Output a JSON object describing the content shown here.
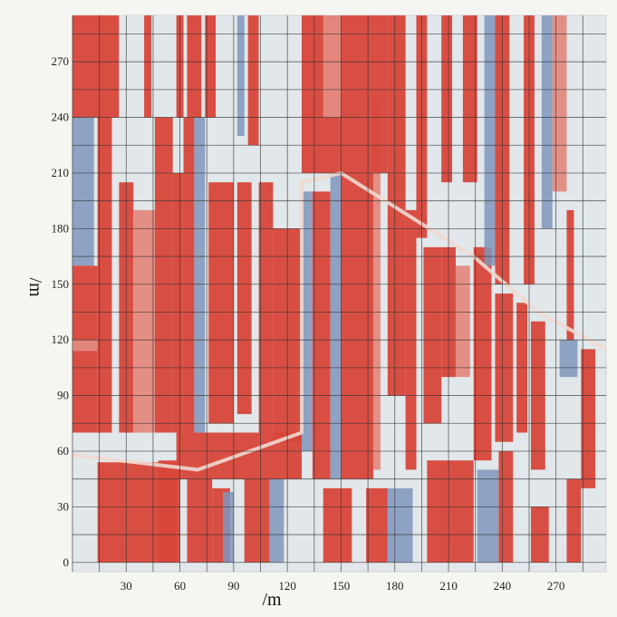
{
  "chart_data": {
    "type": "heatmap",
    "title": "",
    "xlabel": "/m",
    "ylabel": "/m",
    "x_ticks": [
      30,
      60,
      90,
      120,
      150,
      180,
      210,
      240,
      270
    ],
    "y_ticks": [
      0,
      30,
      60,
      90,
      120,
      150,
      180,
      210,
      240,
      270
    ],
    "xlim": [
      0,
      298
    ],
    "ylim": [
      -5,
      295
    ],
    "grid": true,
    "colors": {
      "red": "#d8463a",
      "pink": "#e48a7f",
      "white": "#e1e7ea",
      "blue": "#7f95bc",
      "frame": "#cfd4d6",
      "grid": "#333333"
    },
    "patches": [
      {
        "x": [
          0,
          26
        ],
        "y": [
          240,
          295
        ],
        "c": "red"
      },
      {
        "x": [
          0,
          12
        ],
        "y": [
          160,
          240
        ],
        "c": "blue"
      },
      {
        "x": [
          0,
          14
        ],
        "y": [
          70,
          160
        ],
        "c": "red"
      },
      {
        "x": [
          0,
          14
        ],
        "y": [
          114,
          120
        ],
        "c": "pink"
      },
      {
        "x": [
          14,
          22
        ],
        "y": [
          70,
          240
        ],
        "c": "red"
      },
      {
        "x": [
          0,
          14
        ],
        "y": [
          60,
          70
        ],
        "c": "white"
      },
      {
        "x": [
          0,
          14
        ],
        "y": [
          -5,
          56
        ],
        "c": "white"
      },
      {
        "x": [
          14,
          58
        ],
        "y": [
          0,
          54
        ],
        "c": "red"
      },
      {
        "x": [
          48,
          60
        ],
        "y": [
          0,
          55
        ],
        "c": "red"
      },
      {
        "x": [
          64,
          78
        ],
        "y": [
          0,
          45
        ],
        "c": "red"
      },
      {
        "x": [
          78,
          88
        ],
        "y": [
          0,
          40
        ],
        "c": "red"
      },
      {
        "x": [
          84,
          90
        ],
        "y": [
          0,
          38
        ],
        "c": "blue"
      },
      {
        "x": [
          96,
          110
        ],
        "y": [
          0,
          45
        ],
        "c": "red"
      },
      {
        "x": [
          110,
          118
        ],
        "y": [
          0,
          45
        ],
        "c": "blue"
      },
      {
        "x": [
          140,
          156
        ],
        "y": [
          0,
          40
        ],
        "c": "red"
      },
      {
        "x": [
          164,
          176
        ],
        "y": [
          0,
          40
        ],
        "c": "red"
      },
      {
        "x": [
          176,
          190
        ],
        "y": [
          0,
          40
        ],
        "c": "blue"
      },
      {
        "x": [
          198,
          212
        ],
        "y": [
          0,
          55
        ],
        "c": "red"
      },
      {
        "x": [
          212,
          224
        ],
        "y": [
          0,
          55
        ],
        "c": "red"
      },
      {
        "x": [
          226,
          238
        ],
        "y": [
          0,
          50
        ],
        "c": "blue"
      },
      {
        "x": [
          238,
          246
        ],
        "y": [
          0,
          60
        ],
        "c": "red"
      },
      {
        "x": [
          256,
          266
        ],
        "y": [
          0,
          30
        ],
        "c": "red"
      },
      {
        "x": [
          276,
          284
        ],
        "y": [
          0,
          45
        ],
        "c": "red"
      },
      {
        "x": [
          58,
          128
        ],
        "y": [
          45,
          70
        ],
        "c": "red"
      },
      {
        "x": [
          26,
          34
        ],
        "y": [
          70,
          205
        ],
        "c": "red"
      },
      {
        "x": [
          34,
          46
        ],
        "y": [
          70,
          190
        ],
        "c": "pink"
      },
      {
        "x": [
          46,
          56
        ],
        "y": [
          70,
          240
        ],
        "c": "red"
      },
      {
        "x": [
          56,
          62
        ],
        "y": [
          70,
          210
        ],
        "c": "red"
      },
      {
        "x": [
          62,
          68
        ],
        "y": [
          70,
          240
        ],
        "c": "red"
      },
      {
        "x": [
          68,
          74
        ],
        "y": [
          70,
          240
        ],
        "c": "blue"
      },
      {
        "x": [
          76,
          90
        ],
        "y": [
          75,
          205
        ],
        "c": "red"
      },
      {
        "x": [
          92,
          100
        ],
        "y": [
          80,
          205
        ],
        "c": "red"
      },
      {
        "x": [
          104,
          112
        ],
        "y": [
          70,
          205
        ],
        "c": "red"
      },
      {
        "x": [
          112,
          128
        ],
        "y": [
          65,
          180
        ],
        "c": "red"
      },
      {
        "x": [
          128,
          134
        ],
        "y": [
          60,
          200
        ],
        "c": "blue"
      },
      {
        "x": [
          134,
          144
        ],
        "y": [
          45,
          200
        ],
        "c": "red"
      },
      {
        "x": [
          144,
          150
        ],
        "y": [
          45,
          210
        ],
        "c": "blue"
      },
      {
        "x": [
          150,
          168
        ],
        "y": [
          45,
          210
        ],
        "c": "red"
      },
      {
        "x": [
          168,
          172
        ],
        "y": [
          50,
          250
        ],
        "c": "pink"
      },
      {
        "x": [
          176,
          186
        ],
        "y": [
          90,
          190
        ],
        "c": "red"
      },
      {
        "x": [
          186,
          192
        ],
        "y": [
          50,
          190
        ],
        "c": "red"
      },
      {
        "x": [
          196,
          206
        ],
        "y": [
          75,
          170
        ],
        "c": "red"
      },
      {
        "x": [
          206,
          214
        ],
        "y": [
          100,
          170
        ],
        "c": "red"
      },
      {
        "x": [
          214,
          222
        ],
        "y": [
          100,
          160
        ],
        "c": "pink"
      },
      {
        "x": [
          224,
          234
        ],
        "y": [
          55,
          170
        ],
        "c": "red"
      },
      {
        "x": [
          236,
          246
        ],
        "y": [
          65,
          145
        ],
        "c": "red"
      },
      {
        "x": [
          248,
          254
        ],
        "y": [
          70,
          140
        ],
        "c": "red"
      },
      {
        "x": [
          256,
          264
        ],
        "y": [
          50,
          130
        ],
        "c": "red"
      },
      {
        "x": [
          272,
          282
        ],
        "y": [
          100,
          120
        ],
        "c": "blue"
      },
      {
        "x": [
          284,
          292
        ],
        "y": [
          40,
          115
        ],
        "c": "red"
      },
      {
        "x": [
          26,
          40
        ],
        "y": [
          240,
          295
        ],
        "c": "white"
      },
      {
        "x": [
          40,
          44
        ],
        "y": [
          240,
          295
        ],
        "c": "red"
      },
      {
        "x": [
          46,
          58
        ],
        "y": [
          240,
          295
        ],
        "c": "white"
      },
      {
        "x": [
          58,
          62
        ],
        "y": [
          240,
          295
        ],
        "c": "red"
      },
      {
        "x": [
          64,
          72
        ],
        "y": [
          240,
          295
        ],
        "c": "red"
      },
      {
        "x": [
          74,
          80
        ],
        "y": [
          240,
          295
        ],
        "c": "red"
      },
      {
        "x": [
          92,
          96
        ],
        "y": [
          230,
          295
        ],
        "c": "blue"
      },
      {
        "x": [
          98,
          104
        ],
        "y": [
          225,
          295
        ],
        "c": "red"
      },
      {
        "x": [
          128,
          176
        ],
        "y": [
          210,
          295
        ],
        "c": "red"
      },
      {
        "x": [
          140,
          150
        ],
        "y": [
          240,
          295
        ],
        "c": "pink"
      },
      {
        "x": [
          176,
          186
        ],
        "y": [
          190,
          295
        ],
        "c": "red"
      },
      {
        "x": [
          192,
          198
        ],
        "y": [
          175,
          295
        ],
        "c": "red"
      },
      {
        "x": [
          206,
          212
        ],
        "y": [
          205,
          295
        ],
        "c": "red"
      },
      {
        "x": [
          218,
          226
        ],
        "y": [
          205,
          295
        ],
        "c": "red"
      },
      {
        "x": [
          230,
          236
        ],
        "y": [
          160,
          295
        ],
        "c": "blue"
      },
      {
        "x": [
          236,
          244
        ],
        "y": [
          150,
          295
        ],
        "c": "red"
      },
      {
        "x": [
          252,
          258
        ],
        "y": [
          150,
          295
        ],
        "c": "red"
      },
      {
        "x": [
          262,
          268
        ],
        "y": [
          180,
          295
        ],
        "c": "blue"
      },
      {
        "x": [
          268,
          276
        ],
        "y": [
          200,
          295
        ],
        "c": "pink"
      },
      {
        "x": [
          276,
          280
        ],
        "y": [
          120,
          190
        ],
        "c": "red"
      }
    ],
    "diagonal_path": [
      [
        0,
        58
      ],
      [
        70,
        50
      ],
      [
        128,
        70
      ],
      [
        128,
        205
      ],
      [
        150,
        210
      ],
      [
        224,
        165
      ],
      [
        260,
        135
      ],
      [
        298,
        115
      ]
    ]
  }
}
